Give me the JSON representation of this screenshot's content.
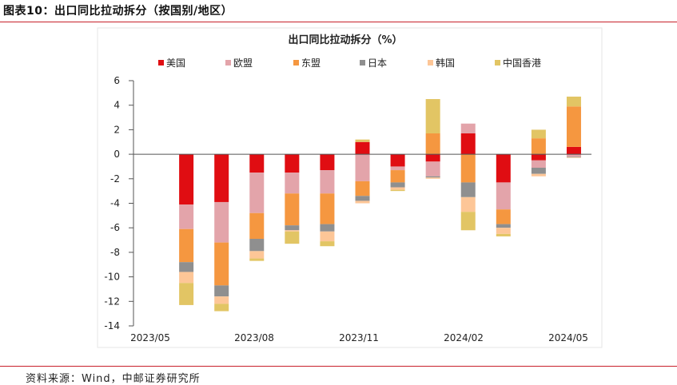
{
  "figure": {
    "title": "图表10：出口同比拉动拆分（按国别/地区）",
    "source": "资料来源：Wind，中邮证券研究所"
  },
  "colors": {
    "美国": "#e00d12",
    "欧盟": "#e3a4aa",
    "东盟": "#f59740",
    "日本": "#8f8f8f",
    "韩国": "#fdc697",
    "中国香港": "#e2c564",
    "rule": "#c8202a"
  },
  "chart_data": {
    "type": "bar",
    "stacked": true,
    "title": "出口同比拉动拆分（%）",
    "xlabel": "",
    "ylabel": "",
    "ylim": [
      -14,
      6
    ],
    "yticks": [
      6,
      4,
      2,
      0,
      -2,
      -4,
      -6,
      -8,
      -10,
      -12,
      -14
    ],
    "legend_position": "top",
    "categories": [
      "2023/05",
      "2023/06",
      "2023/07",
      "2023/08",
      "2023/09",
      "2023/10",
      "2023/11",
      "2023/12",
      "2024/01",
      "2024/02",
      "2024/03",
      "2024/04",
      "2024/05"
    ],
    "xtick_labels": [
      "2023/05",
      "2023/08",
      "2023/11",
      "2024/02",
      "2024/05"
    ],
    "xtick_categories": [
      "2023/05",
      "2023/08",
      "2023/11",
      "2024/02",
      "2024/05"
    ],
    "series": [
      {
        "name": "美国",
        "values": [
          null,
          -4.1,
          -3.9,
          -1.5,
          -1.5,
          -1.3,
          1.0,
          -1.0,
          -0.6,
          1.7,
          -2.3,
          -0.5,
          0.6
        ]
      },
      {
        "name": "欧盟",
        "values": [
          null,
          -2.0,
          -3.3,
          -3.3,
          -1.7,
          -1.9,
          -2.2,
          -0.3,
          -1.2,
          0.8,
          -2.2,
          -0.6,
          -0.2
        ]
      },
      {
        "name": "东盟",
        "values": [
          null,
          -2.7,
          -3.5,
          -2.1,
          -2.6,
          -2.5,
          -1.2,
          -1.0,
          1.7,
          -2.3,
          -1.2,
          1.3,
          3.3
        ]
      },
      {
        "name": "日本",
        "values": [
          null,
          -0.8,
          -0.9,
          -1.0,
          -0.4,
          -0.6,
          -0.4,
          -0.4,
          -0.1,
          -1.2,
          -0.3,
          -0.5,
          -0.05
        ]
      },
      {
        "name": "韩国",
        "values": [
          null,
          -0.9,
          -0.6,
          -0.6,
          -0.1,
          -0.8,
          -0.2,
          -0.2,
          -0.1,
          -1.2,
          -0.5,
          -0.2,
          -0.05
        ]
      },
      {
        "name": "中国香港",
        "values": [
          null,
          -1.8,
          -0.6,
          -0.2,
          -1.0,
          -0.4,
          0.2,
          -0.1,
          2.8,
          -1.5,
          -0.2,
          0.7,
          0.8
        ]
      }
    ]
  }
}
